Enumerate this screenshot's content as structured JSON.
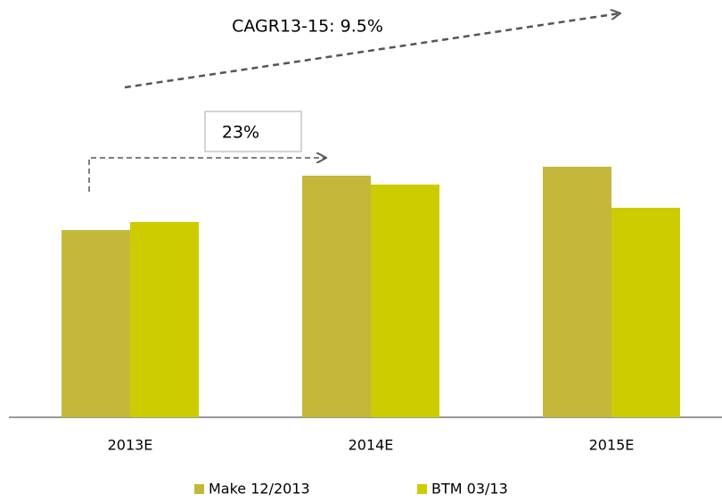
{
  "chart_data": {
    "type": "bar",
    "categories": [
      "2013E",
      "2014E",
      "2015E"
    ],
    "series": [
      {
        "name": "Make 12/2013",
        "color": "#c3b83a",
        "values": [
          210,
          271,
          281
        ]
      },
      {
        "name": "BTM 03/13",
        "color": "#cccc00",
        "values": [
          219,
          261,
          235
        ]
      }
    ],
    "annotations": [
      "CAGR13-15: 9.5%",
      "23%"
    ]
  }
}
